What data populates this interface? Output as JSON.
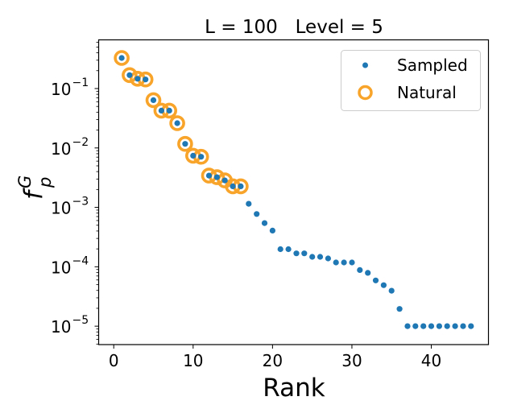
{
  "chart_data": {
    "type": "scatter",
    "title": "L = 100   Level = 5",
    "xlabel": "Rank",
    "ylabel": "f_p^G",
    "ylabel_main": "f",
    "ylabel_sup": "G",
    "ylabel_sub": "p",
    "yscale": "log",
    "xlim": [
      -1.9,
      47.2
    ],
    "ylim": [
      4.9e-06,
      0.66
    ],
    "xticks": [
      0,
      10,
      20,
      30,
      40
    ],
    "xtick_labels": [
      "0",
      "10",
      "20",
      "30",
      "40"
    ],
    "yticks": [
      0.1,
      0.01,
      0.001,
      0.0001,
      1e-05
    ],
    "ytick_labels": [
      {
        "base": "10",
        "exp": "−1"
      },
      {
        "base": "10",
        "exp": "−2"
      },
      {
        "base": "10",
        "exp": "−3"
      },
      {
        "base": "10",
        "exp": "−4"
      },
      {
        "base": "10",
        "exp": "−5"
      }
    ],
    "grid": false,
    "legend_position": "top-right",
    "series": [
      {
        "name": "Sampled",
        "marker": "filled-dot",
        "color": "#1f77b4",
        "x": [
          1,
          2,
          3,
          4,
          5,
          6,
          7,
          8,
          9,
          10,
          11,
          12,
          13,
          14,
          15,
          16,
          17,
          18,
          19,
          20,
          21,
          22,
          23,
          24,
          25,
          26,
          27,
          28,
          29,
          30,
          31,
          32,
          33,
          34,
          35,
          36,
          37,
          38,
          39,
          40,
          41,
          42,
          43,
          44,
          45
        ],
        "y": [
          0.327,
          0.168,
          0.146,
          0.142,
          0.0638,
          0.0425,
          0.0425,
          0.0261,
          0.0117,
          0.0074,
          0.0071,
          0.00343,
          0.00322,
          0.00284,
          0.00226,
          0.00226,
          0.00115,
          0.000774,
          0.000544,
          0.000406,
          0.000198,
          0.000198,
          0.000168,
          0.000168,
          0.000147,
          0.000147,
          0.000138,
          0.000118,
          0.000118,
          0.000118,
          8.8e-05,
          7.9e-05,
          5.9e-05,
          4.9e-05,
          3.95e-05,
          1.95e-05,
          1e-05,
          1e-05,
          1e-05,
          1e-05,
          1e-05,
          1e-05,
          1e-05,
          1e-05,
          1e-05
        ]
      },
      {
        "name": "Natural",
        "marker": "open-circle",
        "color": "#f8a42a",
        "x": [
          1,
          2,
          3,
          4,
          5,
          6,
          7,
          8,
          9,
          10,
          11,
          12,
          13,
          14,
          15,
          16
        ],
        "y": [
          0.327,
          0.168,
          0.146,
          0.142,
          0.0638,
          0.0425,
          0.0425,
          0.0261,
          0.0117,
          0.0074,
          0.0071,
          0.00343,
          0.00322,
          0.00284,
          0.00226,
          0.00226
        ]
      }
    ]
  }
}
